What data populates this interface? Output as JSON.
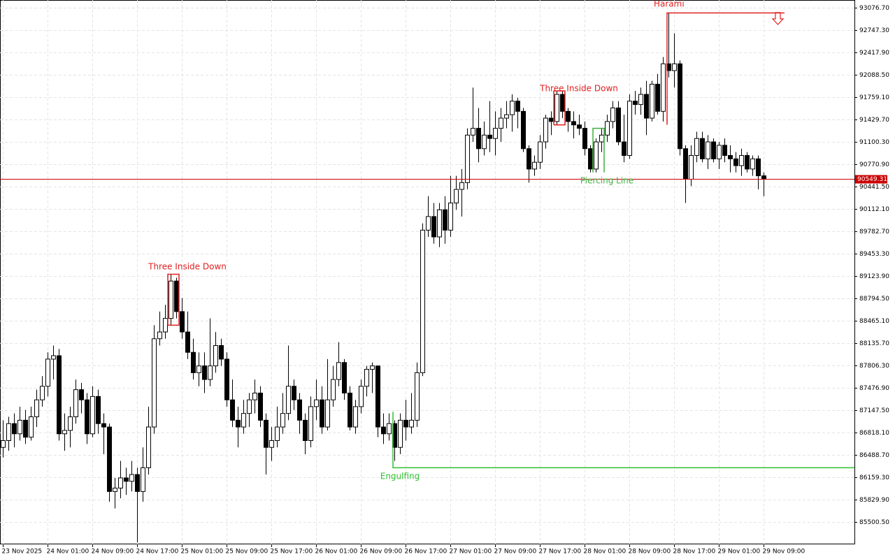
{
  "chart_data": {
    "type": "candlestick",
    "ylim": [
      85171.7,
      93189.9
    ],
    "yticks": [
      {
        "value": 93076.7,
        "label": "93076.70"
      },
      {
        "value": 92747.3,
        "label": "92747.30"
      },
      {
        "value": 92417.9,
        "label": "92417.90"
      },
      {
        "value": 92088.5,
        "label": "92088.50"
      },
      {
        "value": 91759.1,
        "label": "91759.10"
      },
      {
        "value": 91429.7,
        "label": "91429.70"
      },
      {
        "value": 91100.3,
        "label": "91100.30"
      },
      {
        "value": 90770.9,
        "label": "90770.90"
      },
      {
        "value": 90441.5,
        "label": "90441.50"
      },
      {
        "value": 90112.1,
        "label": "90112.10"
      },
      {
        "value": 89782.7,
        "label": "89782.70"
      },
      {
        "value": 89453.3,
        "label": "89453.30"
      },
      {
        "value": 89123.9,
        "label": "89123.90"
      },
      {
        "value": 88794.5,
        "label": "88794.50"
      },
      {
        "value": 88465.1,
        "label": "88465.10"
      },
      {
        "value": 88135.7,
        "label": "88135.70"
      },
      {
        "value": 87806.3,
        "label": "87806.30"
      },
      {
        "value": 87476.9,
        "label": "87476.90"
      },
      {
        "value": 87147.5,
        "label": "87147.50"
      },
      {
        "value": 86818.1,
        "label": "86818.10"
      },
      {
        "value": 86488.7,
        "label": "86488.70"
      },
      {
        "value": 86159.3,
        "label": "86159.30"
      },
      {
        "value": 85829.9,
        "label": "85829.90"
      },
      {
        "value": 85500.5,
        "label": "85500.50"
      }
    ],
    "xticks": [
      {
        "value": 0,
        "label": "23 Nov 2025"
      },
      {
        "value": 8,
        "label": "24 Nov 01:00"
      },
      {
        "value": 16,
        "label": "24 Nov 09:00"
      },
      {
        "value": 24,
        "label": "24 Nov 17:00"
      },
      {
        "value": 32,
        "label": "25 Nov 01:00"
      },
      {
        "value": 40,
        "label": "25 Nov 09:00"
      },
      {
        "value": 48,
        "label": "25 Nov 17:00"
      },
      {
        "value": 56,
        "label": "26 Nov 01:00"
      },
      {
        "value": 64,
        "label": "26 Nov 09:00"
      },
      {
        "value": 72,
        "label": "26 Nov 17:00"
      },
      {
        "value": 80,
        "label": "27 Nov 01:00"
      },
      {
        "value": 88,
        "label": "27 Nov 09:00"
      },
      {
        "value": 96,
        "label": "27 Nov 17:00"
      },
      {
        "value": 104,
        "label": "28 Nov 01:00"
      },
      {
        "value": 112,
        "label": "28 Nov 09:00"
      },
      {
        "value": 120,
        "label": "28 Nov 17:00"
      },
      {
        "value": 128,
        "label": "29 Nov 01:00"
      },
      {
        "value": 136,
        "label": "29 Nov 09:00"
      }
    ],
    "grid": true,
    "last_price": 90549.31,
    "last_price_color": "#cc0000",
    "annotations": [
      {
        "text": "Three Inside Down",
        "color": "#e02020"
      },
      {
        "text": "Three Inside Down",
        "color": "#e02020"
      },
      {
        "text": "Piercing Line",
        "color": "#40b040"
      },
      {
        "text": "Engulfing",
        "color": "#30c030",
        "level": 86300
      },
      {
        "text": "Harami",
        "color": "#e02020",
        "level": 93000
      }
    ],
    "candles": [
      [
        86600,
        87000,
        86450,
        86700
      ],
      [
        86700,
        87050,
        86550,
        86950
      ],
      [
        86950,
        87100,
        86600,
        86800
      ],
      [
        86800,
        87200,
        86700,
        87000
      ],
      [
        87000,
        87150,
        86650,
        86750
      ],
      [
        86750,
        87200,
        86700,
        87050
      ],
      [
        87050,
        87450,
        86900,
        87300
      ],
      [
        87300,
        87650,
        87200,
        87500
      ],
      [
        87500,
        88000,
        87350,
        87900
      ],
      [
        87900,
        88100,
        87600,
        87950
      ],
      [
        87950,
        88050,
        86700,
        86800
      ],
      [
        86800,
        87100,
        86550,
        86850
      ],
      [
        86850,
        87200,
        86600,
        87050
      ],
      [
        87050,
        87600,
        86950,
        87450
      ],
      [
        87450,
        87550,
        87100,
        87300
      ],
      [
        87300,
        87400,
        86650,
        86800
      ],
      [
        86800,
        87500,
        86750,
        87350
      ],
      [
        87350,
        87450,
        86800,
        86950
      ],
      [
        86950,
        87100,
        86500,
        86900
      ],
      [
        86900,
        86950,
        85800,
        85950
      ],
      [
        85950,
        86150,
        85700,
        86000
      ],
      [
        86000,
        86400,
        85850,
        86150
      ],
      [
        86150,
        86300,
        85900,
        86100
      ],
      [
        86100,
        86400,
        85950,
        86200
      ],
      [
        86200,
        86300,
        85200,
        85950
      ],
      [
        85950,
        86600,
        85800,
        86300
      ],
      [
        86300,
        87200,
        86200,
        86900
      ],
      [
        86900,
        88400,
        86800,
        88200
      ],
      [
        88200,
        88600,
        88100,
        88300
      ],
      [
        88300,
        88700,
        88200,
        88500
      ],
      [
        88500,
        89150,
        88400,
        89050
      ],
      [
        89050,
        89100,
        88500,
        88600
      ],
      [
        88600,
        88800,
        88200,
        88300
      ],
      [
        88300,
        88600,
        87900,
        88000
      ],
      [
        88000,
        88200,
        87600,
        87700
      ],
      [
        87700,
        88000,
        87500,
        87800
      ],
      [
        87800,
        88000,
        87400,
        87600
      ],
      [
        87600,
        88500,
        87500,
        87800
      ],
      [
        87800,
        88300,
        87700,
        88100
      ],
      [
        88100,
        88200,
        87800,
        87900
      ],
      [
        87900,
        88000,
        87200,
        87300
      ],
      [
        87300,
        87600,
        86900,
        87000
      ],
      [
        87000,
        87200,
        86600,
        86900
      ],
      [
        86900,
        87300,
        86800,
        87100
      ],
      [
        87100,
        87400,
        86900,
        87300
      ],
      [
        87300,
        87600,
        87100,
        87400
      ],
      [
        87400,
        87500,
        86900,
        87000
      ],
      [
        87000,
        87100,
        86200,
        86600
      ],
      [
        86600,
        86900,
        86400,
        86700
      ],
      [
        86700,
        87200,
        86600,
        86900
      ],
      [
        86900,
        87400,
        86800,
        87100
      ],
      [
        87100,
        88100,
        87000,
        87500
      ],
      [
        87500,
        87600,
        87150,
        87300
      ],
      [
        87300,
        87400,
        86800,
        87000
      ],
      [
        87000,
        87100,
        86500,
        86700
      ],
      [
        86700,
        87350,
        86600,
        87200
      ],
      [
        87200,
        87600,
        87000,
        87300
      ],
      [
        87300,
        87500,
        86800,
        86900
      ],
      [
        86900,
        87900,
        86850,
        87300
      ],
      [
        87300,
        87800,
        87200,
        87600
      ],
      [
        87600,
        88150,
        87500,
        87850
      ],
      [
        87850,
        87900,
        87300,
        87400
      ],
      [
        87400,
        87500,
        86850,
        86900
      ],
      [
        86900,
        87300,
        86800,
        87200
      ],
      [
        87200,
        87600,
        87100,
        87500
      ],
      [
        87500,
        87800,
        87350,
        87750
      ],
      [
        87750,
        87850,
        87400,
        87800
      ],
      [
        87800,
        87800,
        86750,
        86900
      ],
      [
        86900,
        87100,
        86650,
        86800
      ],
      [
        86800,
        87100,
        86700,
        86950
      ],
      [
        86950,
        87000,
        86400,
        86600
      ],
      [
        86600,
        87100,
        86500,
        87000
      ],
      [
        87000,
        87300,
        86700,
        86900
      ],
      [
        86900,
        87400,
        86800,
        87000
      ],
      [
        87000,
        87850,
        86900,
        87700
      ],
      [
        87700,
        89900,
        87650,
        89800
      ],
      [
        89800,
        90300,
        89700,
        90000
      ],
      [
        90000,
        90200,
        89600,
        89700
      ],
      [
        89700,
        90200,
        89550,
        90100
      ],
      [
        90100,
        90300,
        89600,
        89800
      ],
      [
        89800,
        90600,
        89700,
        90200
      ],
      [
        90200,
        90600,
        90100,
        90400
      ],
      [
        90400,
        90700,
        90000,
        90500
      ],
      [
        90500,
        91300,
        90400,
        91200
      ],
      [
        91200,
        91900,
        91100,
        91300
      ],
      [
        91300,
        91600,
        90800,
        91000
      ],
      [
        91000,
        91400,
        90900,
        91200
      ],
      [
        91200,
        91700,
        90950,
        91150
      ],
      [
        91150,
        91550,
        90900,
        91300
      ],
      [
        91300,
        91600,
        91100,
        91450
      ],
      [
        91450,
        91700,
        91300,
        91500
      ],
      [
        91500,
        91800,
        91250,
        91700
      ],
      [
        91700,
        91750,
        91300,
        91550
      ],
      [
        91550,
        91600,
        90950,
        91000
      ],
      [
        91000,
        91050,
        90500,
        90700
      ],
      [
        90700,
        90900,
        90600,
        90800
      ],
      [
        90800,
        91200,
        90700,
        91100
      ],
      [
        91100,
        91500,
        91000,
        91450
      ],
      [
        91450,
        91550,
        91200,
        91400
      ],
      [
        91400,
        91850,
        91350,
        91800
      ],
      [
        91800,
        91850,
        91450,
        91550
      ],
      [
        91550,
        91600,
        91250,
        91400
      ],
      [
        91400,
        91550,
        91150,
        91350
      ],
      [
        91350,
        91500,
        91200,
        91300
      ],
      [
        91300,
        91400,
        90900,
        91000
      ],
      [
        91000,
        91050,
        90650,
        90700
      ],
      [
        90700,
        91150,
        90650,
        91100
      ],
      [
        91100,
        91300,
        90950,
        91200
      ],
      [
        91200,
        91500,
        91100,
        91400
      ],
      [
        91400,
        91700,
        91300,
        91600
      ],
      [
        91600,
        91700,
        91050,
        91100
      ],
      [
        91100,
        91500,
        90800,
        90900
      ],
      [
        90900,
        91800,
        90850,
        91700
      ],
      [
        91700,
        91850,
        91500,
        91650
      ],
      [
        91650,
        91900,
        91500,
        91800
      ],
      [
        91800,
        92000,
        91200,
        91450
      ],
      [
        91450,
        92000,
        91400,
        91950
      ],
      [
        91950,
        92100,
        91500,
        91550
      ],
      [
        91550,
        92350,
        91400,
        92250
      ],
      [
        92250,
        93000,
        92050,
        92150
      ],
      [
        92150,
        92700,
        91900,
        92250
      ],
      [
        92250,
        92300,
        90900,
        91000
      ],
      [
        91000,
        91050,
        90200,
        90550
      ],
      [
        90550,
        91050,
        90450,
        90900
      ],
      [
        90900,
        91250,
        90800,
        91150
      ],
      [
        91150,
        91250,
        90800,
        90850
      ],
      [
        90850,
        91200,
        90700,
        91100
      ],
      [
        91100,
        91150,
        90800,
        90850
      ],
      [
        90850,
        91100,
        90700,
        91050
      ],
      [
        91050,
        91150,
        90800,
        90900
      ],
      [
        90900,
        91050,
        90650,
        90850
      ],
      [
        90850,
        90950,
        90650,
        90750
      ],
      [
        90750,
        91000,
        90600,
        90900
      ],
      [
        90900,
        90950,
        90650,
        90700
      ],
      [
        90700,
        90900,
        90600,
        90850
      ],
      [
        90850,
        90900,
        90400,
        90600
      ],
      [
        90600,
        90650,
        90300,
        90549.31
      ]
    ]
  }
}
